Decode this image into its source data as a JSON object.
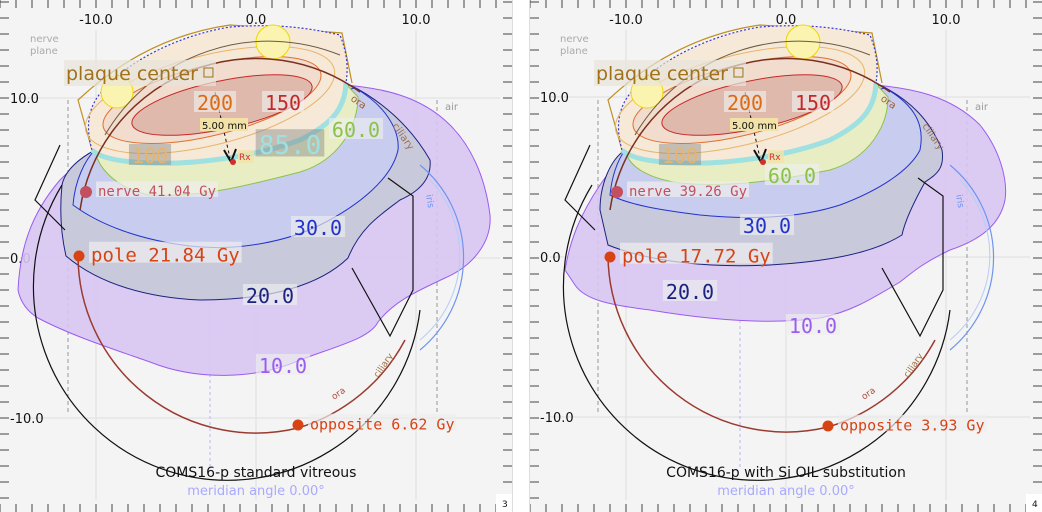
{
  "axes": {
    "x_ticks": [
      "-10.0",
      "0.0",
      "10.0"
    ],
    "y_ticks": [
      "10.0",
      "0.0",
      "-10.0"
    ]
  },
  "common_labels": {
    "plaque_center": "plaque center",
    "distance": "5.00 mm",
    "rx": "Rx",
    "air": "air",
    "nerve_plane": [
      "nerve",
      "plane"
    ],
    "ora": "ora",
    "ciliary": "ciliary",
    "iris": "iris"
  },
  "colors": {
    "dose_10": "#9b5cf0",
    "dose_20": "#1a237e",
    "dose_30": "#2233cc",
    "dose_60": "#8bc34a",
    "dose_85": "#9fe0e0",
    "dose_100": "#e9b46a",
    "dose_150": "#c62828",
    "dose_200": "#e06a10",
    "points": "#d84315",
    "nerve": "#c2505f",
    "meridian": "#a9a9ff"
  },
  "panels": [
    {
      "title": "COMS16-p standard vitreous",
      "subtitle": "meridian angle 0.00°",
      "page_number": "3",
      "isodose_labels": {
        "d200": "200",
        "d150": "150",
        "d100": "100",
        "d85": "85.0",
        "d60": "60.0",
        "d30": "30.0",
        "d20": "20.0",
        "d10": "10.0"
      },
      "points": {
        "nerve": {
          "label": "nerve 41.04  Gy",
          "dose_gy": 41.04
        },
        "pole": {
          "label": "pole 21.84  Gy",
          "dose_gy": 21.84
        },
        "opposite": {
          "label": "opposite  6.62  Gy",
          "dose_gy": 6.62
        }
      }
    },
    {
      "title": "COMS16-p with Si OIL substitution",
      "subtitle": "meridian angle 0.00°",
      "page_number": "4",
      "isodose_labels": {
        "d200": "200",
        "d150": "150",
        "d100": "100",
        "d60": "60.0",
        "d30": "30.0",
        "d20": "20.0",
        "d10": "10.0"
      },
      "points": {
        "nerve": {
          "label": "nerve 39.26  Gy",
          "dose_gy": 39.26
        },
        "pole": {
          "label": "pole 17.72  Gy",
          "dose_gy": 17.72
        },
        "opposite": {
          "label": "opposite  3.93  Gy",
          "dose_gy": 3.93
        }
      }
    }
  ]
}
